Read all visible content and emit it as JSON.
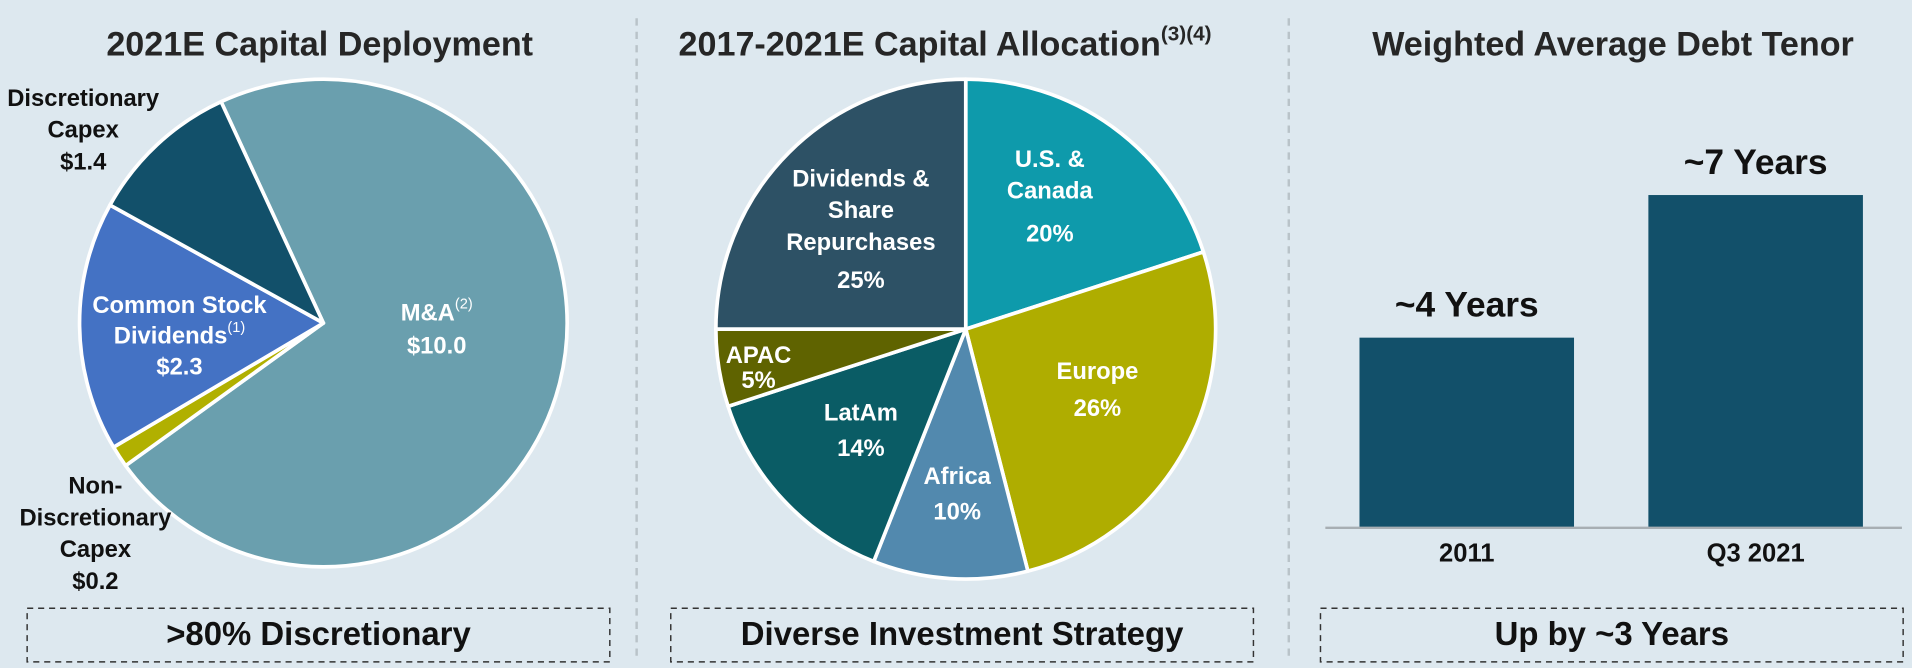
{
  "chart_data": [
    {
      "type": "pie",
      "title": "2021E Capital Deployment",
      "categories": [
        [
          "M&A"
        ],
        [
          "Non-",
          "Discretionary",
          "Capex"
        ],
        [
          "Common Stock",
          "Dividends"
        ],
        [
          "Discretionary",
          "Capex"
        ]
      ],
      "label_notes": [
        "(2)",
        null,
        "(1)",
        null
      ],
      "values": [
        10.0,
        0.2,
        2.3,
        1.4
      ],
      "value_labels": [
        "$10.0",
        "$0.2",
        "$2.3",
        "$1.4"
      ],
      "colors": [
        "#6a9fae",
        "#b1b000",
        "#4472c4",
        "#12506a"
      ],
      "footer": ">80% Discretionary"
    },
    {
      "type": "pie",
      "title": "2017-2021E Capital Allocation",
      "title_note": "(3)(4)",
      "categories": [
        [
          "U.S. &",
          "Canada"
        ],
        [
          "Europe"
        ],
        [
          "Africa"
        ],
        [
          "LatAm"
        ],
        [
          "APAC"
        ],
        [
          "Dividends &",
          "Share",
          "Repurchases"
        ]
      ],
      "values": [
        20,
        26,
        10,
        14,
        5,
        25
      ],
      "value_labels": [
        "20%",
        "26%",
        "10%",
        "14%",
        "5%",
        "25%"
      ],
      "colors": [
        "#0e9aab",
        "#afad00",
        "#5289ae",
        "#0a5c65",
        "#5f6300",
        "#2d5165"
      ],
      "footer": "Diverse Investment Strategy"
    },
    {
      "type": "bar",
      "title": "Weighted Average Debt Tenor",
      "categories": [
        "2011",
        "Q3 2021"
      ],
      "values": [
        4,
        7
      ],
      "value_labels": [
        "~4 Years",
        "~7 Years"
      ],
      "color": "#12506a",
      "ylim": [
        0,
        8
      ],
      "footer": "Up by ~3 Years"
    }
  ]
}
